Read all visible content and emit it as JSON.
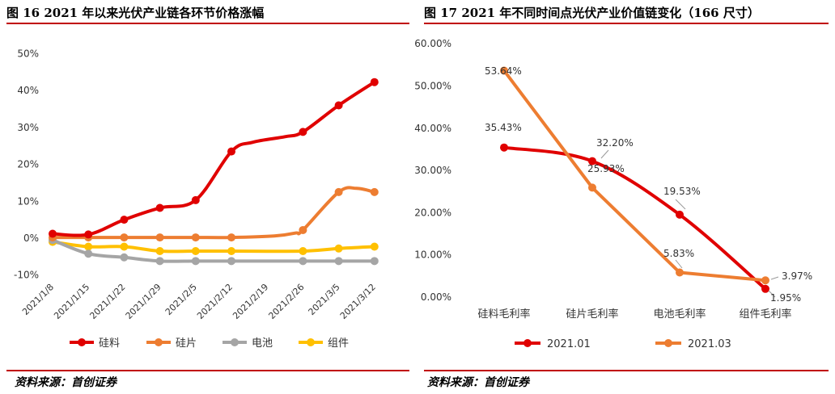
{
  "left": {
    "title": "图 16 2021 年以来光伏产业链各环节价格涨幅",
    "source": "资料来源：首创证券"
  },
  "right": {
    "title": "图 17 2021 年不同时间点光伏产业价值链变化（166 尺寸）",
    "source": "资料来源：首创证券"
  },
  "colors": {
    "red": "#e00000",
    "orange": "#ed7d31",
    "gray": "#a5a5a5",
    "yellow": "#ffc000",
    "rule": "#c00000"
  },
  "chart_data": [
    {
      "type": "line",
      "title": "图 16 2021 年以来光伏产业链各环节价格涨幅",
      "categories": [
        "2021/1/8",
        "2021/1/15",
        "2021/1/22",
        "2021/1/29",
        "2021/2/5",
        "2021/2/12",
        "2021/2/19",
        "2021/2/26",
        "2021/3/5",
        "2021/3/12"
      ],
      "y_ticks": [
        "50%",
        "40%",
        "30%",
        "20%",
        "10%",
        "0%",
        "-10%"
      ],
      "ylim": [
        -10,
        50
      ],
      "legend_position": "bottom",
      "series": [
        {
          "name": "硅料",
          "color": "#e00000",
          "x": [
            0,
            1,
            2,
            3,
            4,
            5,
            7,
            8,
            9
          ],
          "values": [
            1.2,
            1.0,
            5.0,
            8.2,
            10.3,
            23.5,
            28.8,
            36.0,
            42.3
          ],
          "smooth_points": [
            [
              5.6,
              26.0
            ],
            [
              6.5,
              27.5
            ]
          ]
        },
        {
          "name": "硅片",
          "color": "#ed7d31",
          "x": [
            0,
            1,
            2,
            3,
            4,
            5,
            7,
            8,
            9
          ],
          "values": [
            0.2,
            0.2,
            0.2,
            0.2,
            0.2,
            0.2,
            2.2,
            12.5,
            12.5
          ],
          "smooth_points": [
            [
              6.2,
              0.6
            ],
            [
              6.8,
              1.4
            ],
            [
              8.5,
              13.5
            ]
          ]
        },
        {
          "name": "电池",
          "color": "#a5a5a5",
          "x": [
            0,
            1,
            2,
            3,
            4,
            5,
            7,
            8,
            9
          ],
          "values": [
            -0.5,
            -4.2,
            -5.2,
            -6.2,
            -6.2,
            -6.2,
            -6.2,
            -6.2,
            -6.2
          ],
          "smooth_points": []
        },
        {
          "name": "组件",
          "color": "#ffc000",
          "x": [
            0,
            1,
            2,
            3,
            4,
            5,
            7,
            8,
            9
          ],
          "values": [
            -1.0,
            -2.3,
            -2.3,
            -3.5,
            -3.5,
            -3.5,
            -3.5,
            -2.8,
            -2.3
          ],
          "smooth_points": []
        }
      ]
    },
    {
      "type": "line",
      "title": "图 17 2021 年不同时间点光伏产业价值链变化（166 尺寸）",
      "categories": [
        "硅料毛利率",
        "硅片毛利率",
        "电池毛利率",
        "组件毛利率"
      ],
      "y_ticks": [
        "60.00%",
        "50.00%",
        "40.00%",
        "30.00%",
        "20.00%",
        "10.00%",
        "0.00%"
      ],
      "ylim": [
        0,
        60
      ],
      "legend_position": "bottom",
      "series": [
        {
          "name": "2021.01",
          "color": "#e00000",
          "values": [
            35.43,
            32.2,
            19.53,
            1.95
          ],
          "labels": [
            "35.43%",
            "32.20%",
            "19.53%",
            "1.95%"
          ]
        },
        {
          "name": "2021.03",
          "color": "#ed7d31",
          "values": [
            53.64,
            25.93,
            5.83,
            3.97
          ],
          "labels": [
            "53.64%",
            "25.93%",
            "5.83%",
            "3.97%"
          ]
        }
      ]
    }
  ]
}
